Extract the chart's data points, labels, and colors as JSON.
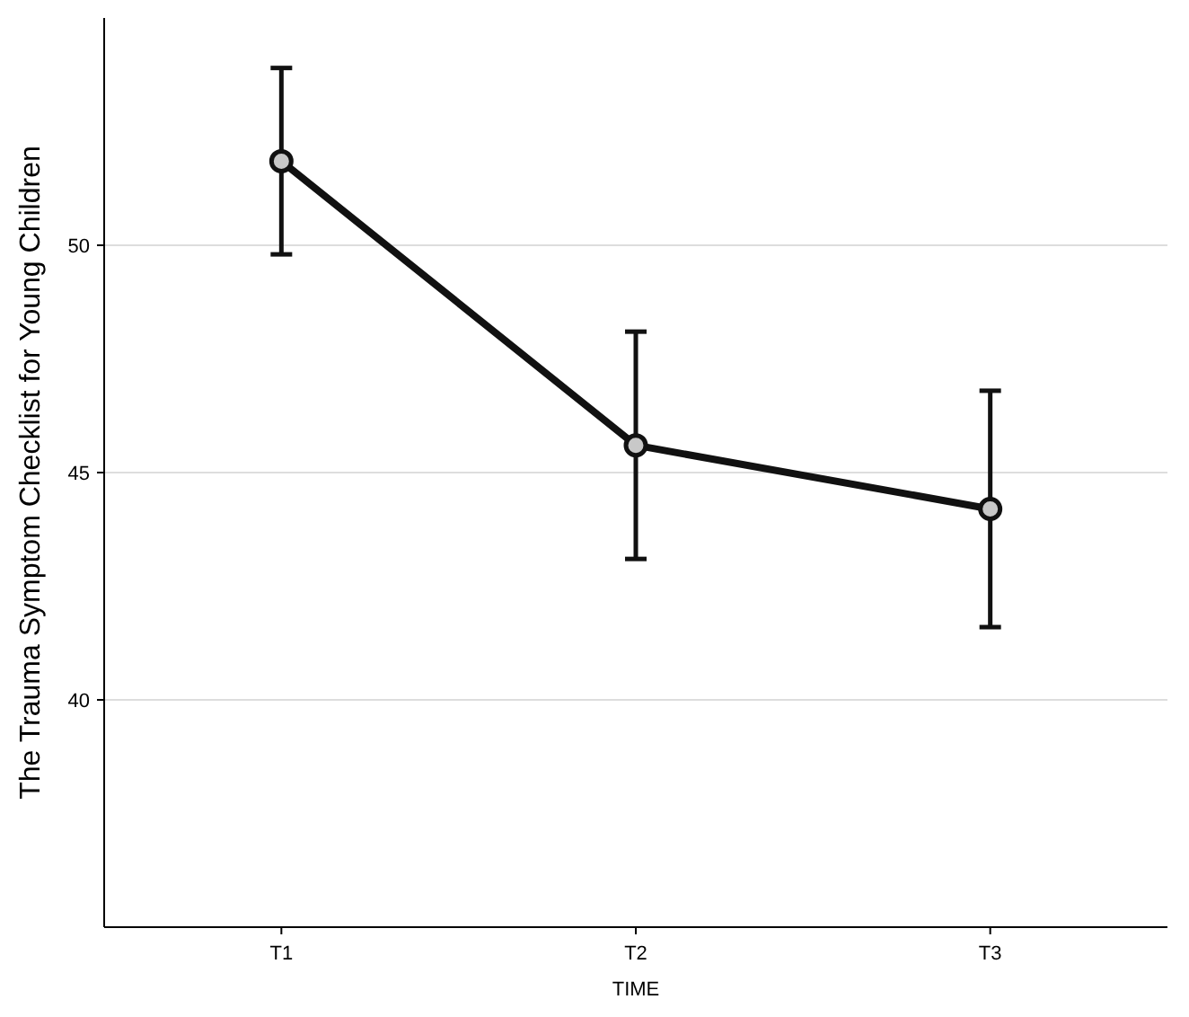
{
  "chart_data": {
    "type": "line",
    "xlabel": "TIME",
    "ylabel": "The Trauma Symptom Checklist for Young Children",
    "categories": [
      "T1",
      "T2",
      "T3"
    ],
    "series": [
      {
        "color": "#111111",
        "values": [
          51.85,
          45.6,
          44.2
        ],
        "errors": [
          [
            49.8,
            53.9
          ],
          [
            43.1,
            48.1
          ],
          [
            41.6,
            46.8
          ]
        ]
      }
    ],
    "ylim": [
      35,
      55
    ],
    "yticks": [
      40,
      45,
      50
    ],
    "grid": "y",
    "marker": "circle",
    "line_style": "solid"
  }
}
